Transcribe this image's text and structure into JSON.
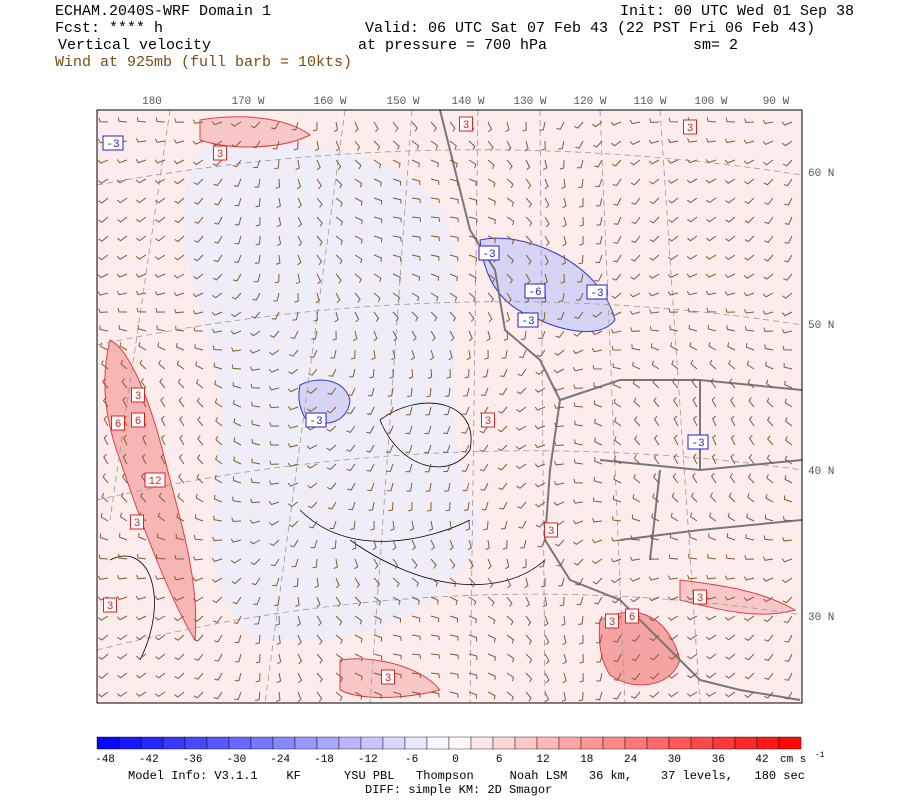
{
  "header": {
    "title": "ECHAM.2040S-WRF Domain 1",
    "init": "Init: 00 UTC Wed 01 Sep 38",
    "fcst": "Fcst: **** h",
    "valid": "Valid: 06 UTC Sat 07 Feb 43 (22 PST Fri 06 Feb 43)",
    "field": "Vertical velocity",
    "pressure": "at pressure =  700 hPa",
    "smooth": "sm= 2",
    "wind": "Wind at 925mb (full barb = 10kts)"
  },
  "map": {
    "lon_labels": [
      "180",
      "170 W",
      "160 W",
      "150 W",
      "140 W",
      "130 W",
      "120 W",
      "110 W",
      "100 W",
      "90 W"
    ],
    "lat_labels": [
      "60 N",
      "50 N",
      "40 N",
      "30 N"
    ],
    "contour_labels": [
      -3,
      3,
      3,
      3,
      -3,
      -6,
      -3,
      -3,
      3,
      6,
      6,
      -3,
      3,
      -3,
      12,
      3,
      3,
      3,
      3,
      6,
      3,
      3
    ]
  },
  "colorbar": {
    "ticks": [
      -48,
      -42,
      -36,
      -30,
      -24,
      -18,
      -12,
      -6,
      0,
      6,
      12,
      18,
      24,
      30,
      36,
      42
    ],
    "unit": "cm s",
    "unit_exponent": "-1"
  },
  "footer": {
    "model_info": "Model Info: V3.1.1    KF      YSU PBL   Thompson     Noah LSM   36 km,    37 levels,   180 sec",
    "diff": "DIFF: simple KM: 2D Smagor"
  }
}
